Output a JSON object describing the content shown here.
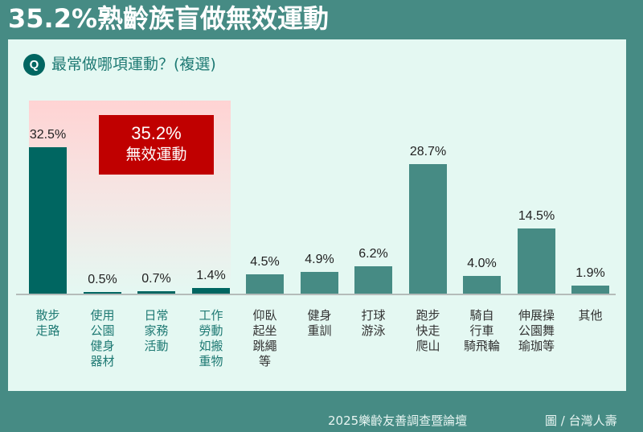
{
  "header": {
    "title": "35.2%熟齡族盲做無效運動"
  },
  "question": {
    "badge": "Q",
    "text": "最常做哪項運動？(複選)"
  },
  "callout": {
    "value": "35.2%",
    "label": "無效運動",
    "color": "#c00000"
  },
  "colors": {
    "ineffective_bar": "#006661",
    "other_bar": "#468b84",
    "background": "#468b84",
    "panel": "#e4f8f2"
  },
  "footer": {
    "source": "2025樂齡友善調查暨論壇",
    "credit": "圖 / 台灣人壽"
  },
  "chart_data": {
    "type": "bar",
    "title": "最常做哪項運動？(複選)",
    "xlabel": "",
    "ylabel": "",
    "ylim": [
      0,
      35
    ],
    "grid": false,
    "legend": "none",
    "categories": [
      "散步\n走路",
      "使用\n公園\n健身\n器材",
      "日常\n家務\n活動",
      "工作\n勞動\n如搬\n重物",
      "仰臥\n起坐\n跳繩\n等",
      "健身\n重訓",
      "打球\n游泳",
      "跑步\n快走\n爬山",
      "騎自\n行車\n騎飛輪",
      "伸展操\n公園舞\n瑜珈等",
      "其他"
    ],
    "values": [
      32.5,
      0.5,
      0.7,
      1.4,
      4.5,
      4.9,
      6.2,
      28.7,
      4.0,
      14.5,
      1.9
    ],
    "value_labels": [
      "32.5%",
      "0.5%",
      "0.7%",
      "1.4%",
      "4.5%",
      "4.9%",
      "6.2%",
      "28.7%",
      "4.0%",
      "14.5%",
      "1.9%"
    ],
    "highlight_group": {
      "indices": [
        0,
        1,
        2,
        3
      ],
      "label": "35.2% 無效運動"
    }
  }
}
